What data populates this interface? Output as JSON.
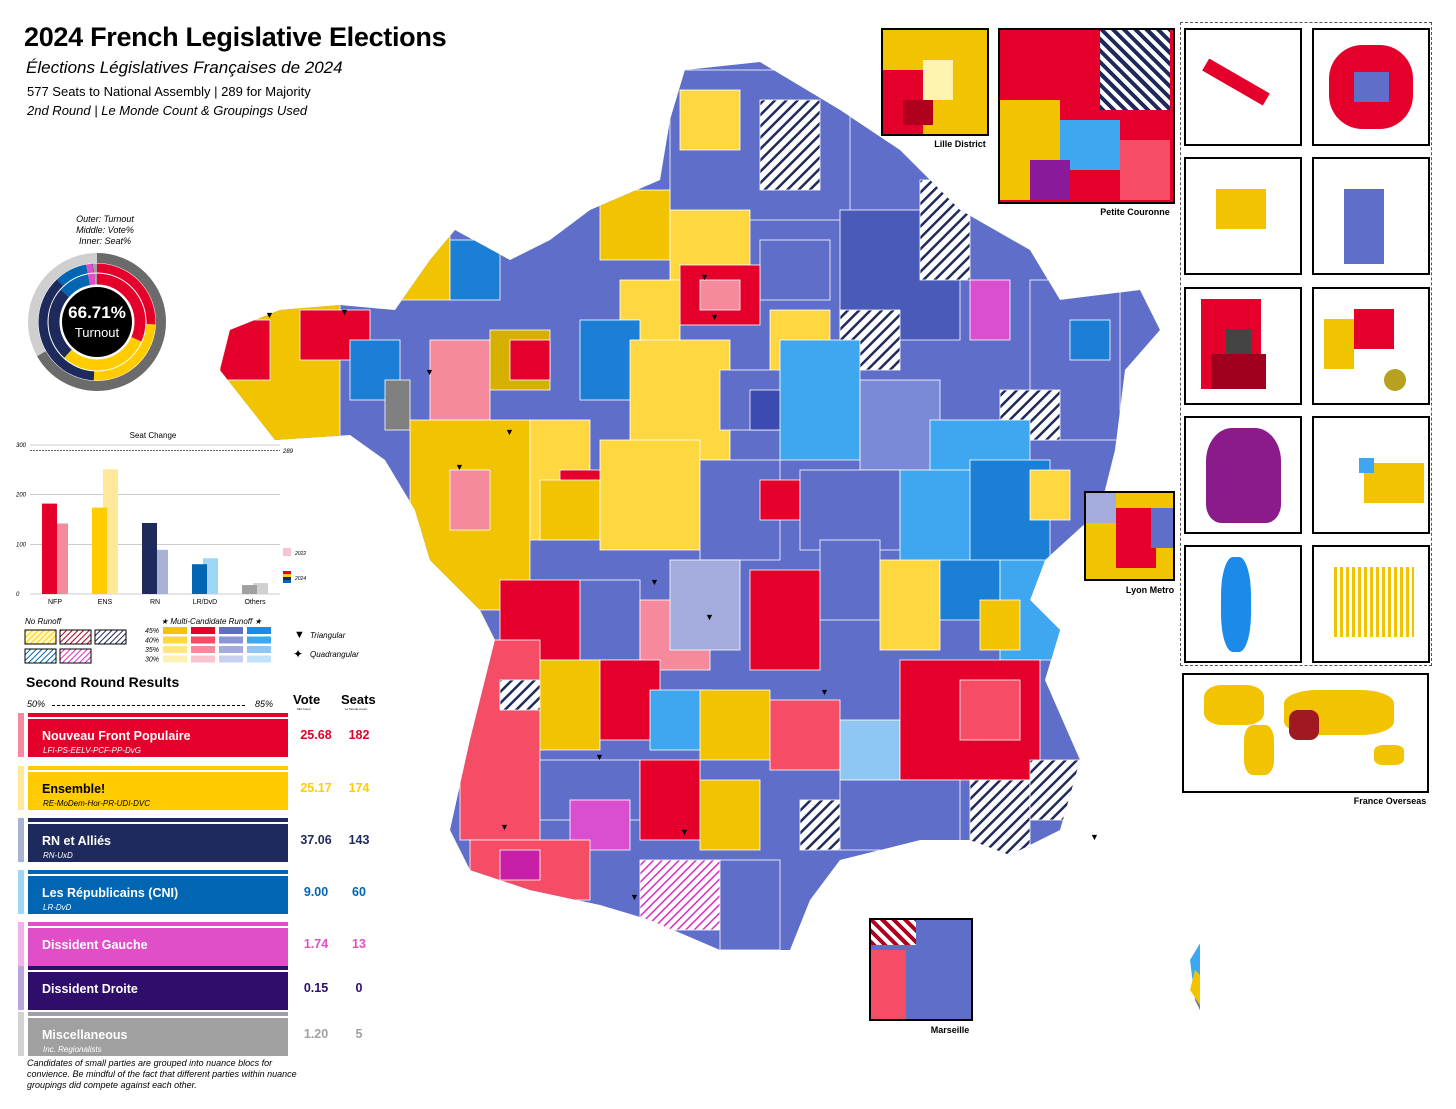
{
  "header": {
    "title": "2024 French Legislative Elections",
    "subtitle": "Élections Législatives Françaises de 2024",
    "info_line1": "577 Seats to National Assembly | 289 for Majority",
    "info_line2": "2nd Round | Le Monde Count & Groupings Used"
  },
  "turnout": {
    "legend_outer": "Outer: Turnout",
    "legend_middle": "Middle: Vote%",
    "legend_inner": "Inner: Seat%",
    "value": "66.71%",
    "label": "Turnout",
    "turnout_fraction": 0.6671
  },
  "seat_change": {
    "title": "Seat Change",
    "majority_label": "289",
    "y_ticks": [
      "0",
      "100",
      "200",
      "300"
    ],
    "legend_2022": "2022",
    "legend_2024": "2024"
  },
  "chart_data": {
    "type": "bar",
    "title": "Seat Change",
    "categories": [
      "NFP",
      "ENS",
      "RN",
      "LR/DvD",
      "Others"
    ],
    "series": [
      {
        "name": "2024",
        "values": [
          182,
          174,
          143,
          60,
          18
        ]
      },
      {
        "name": "2022",
        "values": [
          142,
          251,
          89,
          72,
          22
        ]
      }
    ],
    "ylim": [
      0,
      300
    ],
    "reference_line": 289,
    "colors_2024": [
      "#e4002b",
      "#ffcc00",
      "#1f2a5c",
      "#0066b3",
      "#a0a0a0"
    ],
    "colors_2022": [
      "#f58a9c",
      "#ffe899",
      "#a9b2d3",
      "#9fd6f5",
      "#d0d0d0"
    ]
  },
  "legend": {
    "no_runoff": "No Runoff",
    "multi_runoff": "★ Multi-Candidate Runoff ★",
    "pct_labels": [
      "45%",
      "40%",
      "35%",
      "30%"
    ],
    "triangular": "Triangular",
    "quadrangular": "Quadrangular"
  },
  "results": {
    "title": "Second Round Results",
    "vote_header": "Vote",
    "seats_header": "Seats",
    "vote_subheader": "Mid Count",
    "seats_subheader": "Le Monde Count",
    "scale_left": "50%",
    "scale_right": "85%",
    "rows": [
      {
        "name": "Nouveau Front Populaire",
        "sub": "LFI-PS-EELV-PCF-PP-DvG",
        "vote": "25.68",
        "seats": "182",
        "color": "#e4002b",
        "light": "#f58a9c"
      },
      {
        "name": "Ensemble!",
        "sub": "RE-MoDem-Hor-PR-UDI-DVC",
        "vote": "25.17",
        "seats": "174",
        "color": "#ffcc00",
        "light": "#ffe899"
      },
      {
        "name": "RN et Alliés",
        "sub": "RN-UxD",
        "vote": "37.06",
        "seats": "143",
        "color": "#1f2a5c",
        "light": "#a9b2d3"
      },
      {
        "name": "Les Républicains (CNI)",
        "sub": "LR-DvD",
        "vote": "9.00",
        "seats": "60",
        "color": "#0066b3",
        "light": "#9fd6f5"
      },
      {
        "name": "Dissident Gauche",
        "sub": "",
        "vote": "1.74",
        "seats": "13",
        "color": "#e04fc8",
        "light": "#f3b0ea"
      },
      {
        "name": "Dissident Droite",
        "sub": "",
        "vote": "0.15",
        "seats": "0",
        "color": "#2e0d6b",
        "light": "#b9a6e0"
      },
      {
        "name": "Miscellaneous",
        "sub": "Inc. Regionalists",
        "vote": "1.20",
        "seats": "5",
        "color": "#a0a0a0",
        "light": "#d3d3d3"
      }
    ],
    "footnote": "Candidates of small parties are grouped into nuance blocs for convience. Be mindful of the fact that different parties within nuance groupings did compete against each other."
  },
  "insets": {
    "lille": "Lille District",
    "petite_couronne": "Petite Couronne",
    "lyon": "Lyon Metro",
    "marseille": "Marseille",
    "overseas": "France Overseas"
  }
}
